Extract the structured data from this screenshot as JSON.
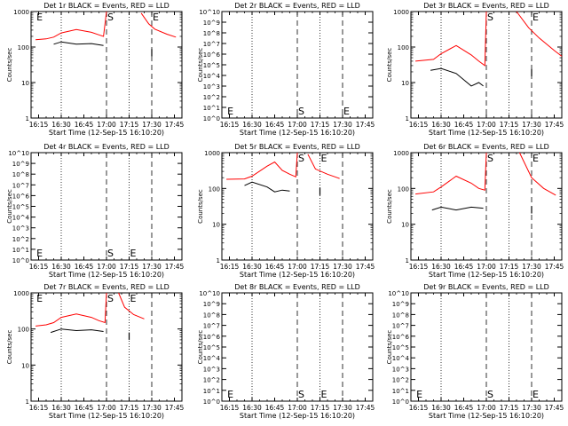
{
  "figure": {
    "xlabel": "Start Time (12-Sep-15 16:10:20)",
    "ylabel": "Counts/sec",
    "x_ticks": [
      "16:15",
      "16:30",
      "16:45",
      "17:00",
      "17:15",
      "17:30",
      "17:45"
    ],
    "colors": {
      "events": "#000000",
      "lld": "#ff0000"
    }
  },
  "chart_data": [
    {
      "type": "line",
      "title": "Det 1r BLACK = Events, RED = LLD",
      "y_scale": "log",
      "ylim": [
        1,
        1000
      ],
      "y_ticks": [
        "1",
        "10",
        "100",
        "1000"
      ],
      "markers": [
        {
          "label": "E",
          "x": "16:13"
        },
        {
          "label": "S",
          "x": "17:00"
        },
        {
          "label": "E",
          "x": "17:30"
        }
      ],
      "series": [
        {
          "color": "#ff0000",
          "segments": [
            [
              [
                "16:13",
                160
              ],
              [
                "16:20",
                170
              ],
              [
                "16:25",
                190
              ],
              [
                "16:30",
                250
              ],
              [
                "16:40",
                310
              ],
              [
                "16:50",
                260
              ],
              [
                "16:55",
                220
              ],
              [
                "16:58",
                200
              ],
              [
                "17:00",
                1000
              ]
            ],
            [
              [
                "17:23",
                900
              ],
              [
                "17:28",
                450
              ],
              [
                "17:32",
                320
              ],
              [
                "17:40",
                230
              ],
              [
                "17:46",
                190
              ]
            ]
          ]
        },
        {
          "color": "#000000",
          "segments": [
            [
              [
                "16:25",
                120
              ],
              [
                "16:30",
                140
              ],
              [
                "16:40",
                120
              ],
              [
                "16:50",
                125
              ],
              [
                "16:58",
                110
              ]
            ],
            [
              [
                "17:30",
                55
              ]
            ]
          ]
        }
      ]
    },
    {
      "type": "line",
      "title": "Det 2r BLACK = Events, RED = LLD",
      "y_scale": "log",
      "ylim": [
        1,
        10000000000
      ],
      "y_ticks": [
        "10^0",
        "10^1",
        "10^2",
        "10^3",
        "10^4",
        "10^5",
        "10^6",
        "10^7",
        "10^8",
        "10^9",
        "10^10"
      ],
      "markers": [
        {
          "label": "E",
          "x": "16:13"
        },
        {
          "label": "S",
          "x": "17:00"
        },
        {
          "label": "E",
          "x": "17:30"
        }
      ],
      "series": []
    },
    {
      "type": "line",
      "title": "Det 3r BLACK = Events, RED = LLD",
      "y_scale": "log",
      "ylim": [
        1,
        1000
      ],
      "y_ticks": [
        "1",
        "10",
        "100",
        "1000"
      ],
      "markers": [
        {
          "label": "S",
          "x": "17:00"
        },
        {
          "label": "E",
          "x": "17:30"
        }
      ],
      "series": [
        {
          "color": "#ff0000",
          "segments": [
            [
              [
                "16:13",
                40
              ],
              [
                "16:25",
                45
              ],
              [
                "16:30",
                65
              ],
              [
                "16:40",
                110
              ],
              [
                "16:50",
                60
              ],
              [
                "16:55",
                40
              ],
              [
                "16:59",
                30
              ],
              [
                "17:00",
                1000
              ]
            ],
            [
              [
                "17:20",
                1000
              ],
              [
                "17:28",
                350
              ],
              [
                "17:35",
                180
              ],
              [
                "17:45",
                80
              ],
              [
                "17:50",
                55
              ]
            ]
          ]
        },
        {
          "color": "#000000",
          "segments": [
            [
              [
                "16:23",
                22
              ],
              [
                "16:30",
                25
              ],
              [
                "16:40",
                18
              ],
              [
                "16:50",
                8
              ],
              [
                "16:55",
                10
              ],
              [
                "16:58",
                8
              ]
            ],
            [
              [
                "17:30",
                15
              ]
            ]
          ]
        }
      ]
    },
    {
      "type": "line",
      "title": "Det 4r BLACK = Events, RED = LLD",
      "y_scale": "log",
      "ylim": [
        1,
        10000000000
      ],
      "y_ticks": [
        "10^0",
        "10^1",
        "10^2",
        "10^3",
        "10^4",
        "10^5",
        "10^6",
        "10^7",
        "10^8",
        "10^9",
        "10^10"
      ],
      "markers": [
        {
          "label": "E",
          "x": "16:13"
        },
        {
          "label": "S",
          "x": "17:00"
        },
        {
          "label": "E",
          "x": "17:15"
        }
      ],
      "series": []
    },
    {
      "type": "line",
      "title": "Det 5r BLACK = Events, RED = LLD",
      "y_scale": "log",
      "ylim": [
        1,
        1000
      ],
      "y_ticks": [
        "1",
        "10",
        "100",
        "1000"
      ],
      "markers": [
        {
          "label": "S",
          "x": "17:00"
        },
        {
          "label": "E",
          "x": "17:15"
        }
      ],
      "series": [
        {
          "color": "#ff0000",
          "segments": [
            [
              [
                "16:13",
                180
              ],
              [
                "16:25",
                185
              ],
              [
                "16:30",
                220
              ],
              [
                "16:40",
                420
              ],
              [
                "16:45",
                550
              ],
              [
                "16:50",
                320
              ],
              [
                "16:55",
                250
              ],
              [
                "16:59",
                210
              ],
              [
                "17:00",
                1000
              ]
            ],
            [
              [
                "17:07",
                900
              ],
              [
                "17:12",
                350
              ],
              [
                "17:20",
                250
              ],
              [
                "17:28",
                190
              ]
            ]
          ]
        },
        {
          "color": "#000000",
          "segments": [
            [
              [
                "16:25",
                120
              ],
              [
                "16:30",
                150
              ],
              [
                "16:40",
                110
              ],
              [
                "16:45",
                80
              ],
              [
                "16:50",
                90
              ],
              [
                "16:55",
                85
              ]
            ],
            [
              [
                "17:15",
                65
              ]
            ]
          ]
        }
      ]
    },
    {
      "type": "line",
      "title": "Det 6r BLACK = Events, RED = LLD",
      "y_scale": "log",
      "ylim": [
        1,
        1000
      ],
      "y_ticks": [
        "1",
        "10",
        "100",
        "1000"
      ],
      "markers": [
        {
          "label": "S",
          "x": "17:00"
        },
        {
          "label": "E",
          "x": "17:30"
        }
      ],
      "series": [
        {
          "color": "#ff0000",
          "segments": [
            [
              [
                "16:13",
                70
              ],
              [
                "16:25",
                80
              ],
              [
                "16:30",
                110
              ],
              [
                "16:40",
                220
              ],
              [
                "16:50",
                140
              ],
              [
                "16:55",
                100
              ],
              [
                "16:59",
                90
              ],
              [
                "17:00",
                1000
              ]
            ],
            [
              [
                "17:22",
                1000
              ],
              [
                "17:30",
                200
              ],
              [
                "17:38",
                100
              ],
              [
                "17:46",
                65
              ]
            ]
          ]
        },
        {
          "color": "#000000",
          "segments": [
            [
              [
                "16:24",
                25
              ],
              [
                "16:30",
                30
              ],
              [
                "16:40",
                25
              ],
              [
                "16:50",
                30
              ],
              [
                "16:58",
                28
              ]
            ],
            [
              [
                "17:30",
                20
              ]
            ]
          ]
        }
      ]
    },
    {
      "type": "line",
      "title": "Det 7r BLACK = Events, RED = LLD",
      "y_scale": "log",
      "ylim": [
        1,
        1000
      ],
      "y_ticks": [
        "1",
        "10",
        "100",
        "1000"
      ],
      "markers": [
        {
          "label": "E",
          "x": "16:13"
        },
        {
          "label": "S",
          "x": "17:00"
        },
        {
          "label": "E",
          "x": "17:15"
        }
      ],
      "series": [
        {
          "color": "#ff0000",
          "segments": [
            [
              [
                "16:13",
                120
              ],
              [
                "16:20",
                130
              ],
              [
                "16:25",
                150
              ],
              [
                "16:30",
                210
              ],
              [
                "16:40",
                260
              ],
              [
                "16:50",
                210
              ],
              [
                "16:55",
                170
              ],
              [
                "16:59",
                150
              ],
              [
                "17:00",
                1000
              ]
            ],
            [
              [
                "17:08",
                1000
              ],
              [
                "17:12",
                400
              ],
              [
                "17:18",
                250
              ],
              [
                "17:25",
                190
              ]
            ]
          ]
        },
        {
          "color": "#000000",
          "segments": [
            [
              [
                "16:23",
                80
              ],
              [
                "16:30",
                100
              ],
              [
                "16:40",
                90
              ],
              [
                "16:50",
                95
              ],
              [
                "16:58",
                85
              ]
            ],
            [
              [
                "17:15",
                50
              ]
            ]
          ]
        }
      ]
    },
    {
      "type": "line",
      "title": "Det 8r BLACK = Events, RED = LLD",
      "y_scale": "log",
      "ylim": [
        1,
        10000000000
      ],
      "y_ticks": [
        "10^0",
        "10^1",
        "10^2",
        "10^3",
        "10^4",
        "10^5",
        "10^6",
        "10^7",
        "10^8",
        "10^9",
        "10^10"
      ],
      "markers": [
        {
          "label": "E",
          "x": "16:13"
        },
        {
          "label": "S",
          "x": "17:00"
        },
        {
          "label": "E",
          "x": "17:15"
        }
      ],
      "series": []
    },
    {
      "type": "line",
      "title": "Det 9r BLACK = Events, RED = LLD",
      "y_scale": "log",
      "ylim": [
        1,
        10000000000
      ],
      "y_ticks": [
        "10^0",
        "10^1",
        "10^2",
        "10^3",
        "10^4",
        "10^5",
        "10^6",
        "10^7",
        "10^8",
        "10^9",
        "10^10"
      ],
      "markers": [
        {
          "label": "E",
          "x": "16:13"
        },
        {
          "label": "S",
          "x": "17:00"
        },
        {
          "label": "E",
          "x": "17:30"
        }
      ],
      "series": []
    }
  ]
}
